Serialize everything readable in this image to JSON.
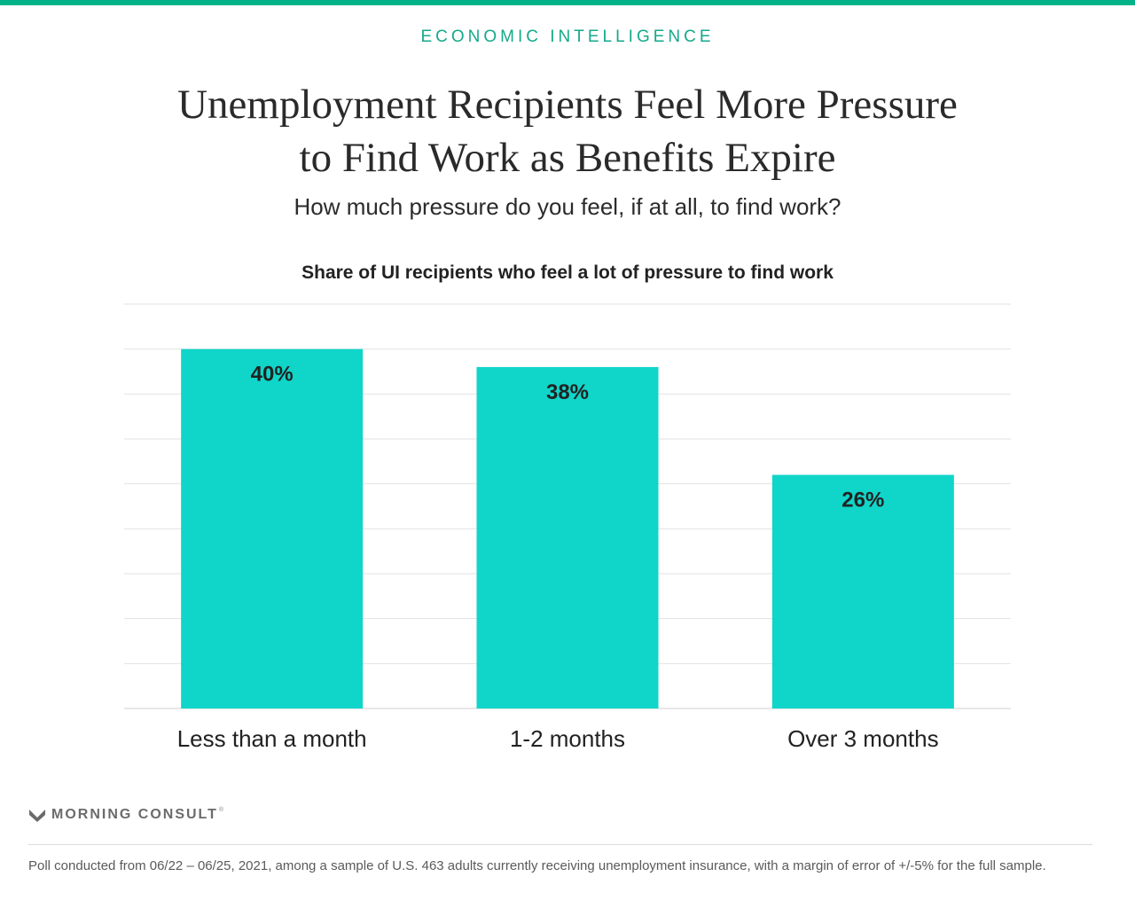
{
  "header": {
    "kicker": "ECONOMIC INTELLIGENCE",
    "title_line1": "Unemployment Recipients Feel More Pressure",
    "title_line2": "to Find Work as Benefits Expire",
    "subtitle": "How much pressure do you feel, if at all, to find work?"
  },
  "colors": {
    "accent": "#00b386",
    "bar": "#10d5c9",
    "kicker": "#14a98a"
  },
  "chart_data": {
    "type": "bar",
    "title": "Share of UI recipients who feel a lot of pressure to find work",
    "categories": [
      "Less than a month",
      "1-2 months",
      "Over 3 months"
    ],
    "values": [
      40,
      38,
      26
    ],
    "value_labels": [
      "40%",
      "38%",
      "26%"
    ],
    "ylim": [
      0,
      45
    ],
    "grid": true,
    "legend": "none"
  },
  "brand": {
    "name": "MORNING CONSULT",
    "logo_icon": "morning-consult-chevron-icon"
  },
  "footnote": "Poll conducted from 06/22 – 06/25, 2021, among a sample of U.S. 463 adults currently receiving unemployment insurance, with a margin of error of +/-5% for the full sample."
}
